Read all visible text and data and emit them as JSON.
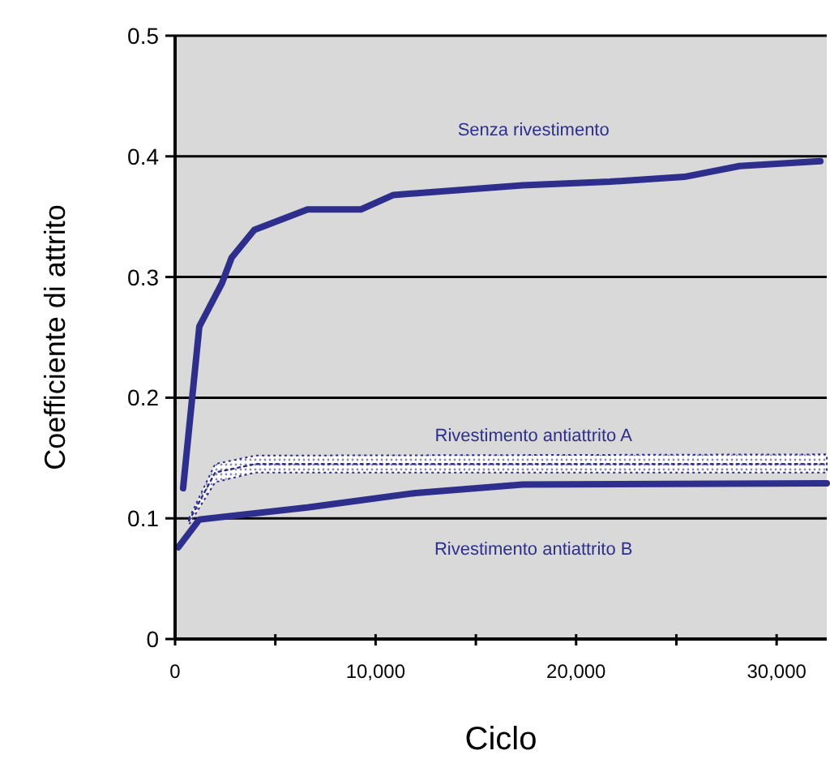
{
  "chart_data": {
    "type": "line",
    "xlabel": "Ciclo",
    "ylabel": "Coefficiente di attrito",
    "xlim": [
      0,
      32500
    ],
    "xticks": [
      0,
      {
        "value": 5000,
        "label": null
      },
      {
        "value": 10000,
        "label": "10,000"
      },
      {
        "value": 15000,
        "label": null
      },
      {
        "value": 20000,
        "label": "20,000"
      },
      {
        "value": 25000,
        "label": null
      },
      {
        "value": 30000,
        "label": "30,000"
      }
    ],
    "ylim": [
      0,
      0.5
    ],
    "yticks": [
      0,
      0.1,
      0.2,
      0.3,
      0.4,
      0.5
    ],
    "grid": "y",
    "marker": "none",
    "series": [
      {
        "name": "Senza rivestimento",
        "color": "#2e2e8c",
        "line_style": "solid",
        "x": [
          400,
          1210,
          2340,
          2820,
          3950,
          6610,
          9270,
          10890,
          17340,
          21690,
          25400,
          28150,
          32180
        ],
        "values": [
          0.125,
          0.259,
          0.295,
          0.316,
          0.339,
          0.356,
          0.356,
          0.368,
          0.376,
          0.379,
          0.383,
          0.392,
          0.396
        ]
      },
      {
        "name": "Rivestimento antiattrito A",
        "color": "#2e2e8c",
        "line_style": "dotted",
        "x": [
          700,
          2000,
          4000,
          32500
        ],
        "values": [
          0.098,
          0.138,
          0.145,
          0.145
        ],
        "lower": [
          0.095,
          0.13,
          0.138,
          0.138
        ],
        "upper": [
          0.1,
          0.145,
          0.152,
          0.153
        ]
      },
      {
        "name": "Rivestimento antiattrito B",
        "color": "#2e2e8c",
        "line_style": "solid",
        "x": [
          160,
          1210,
          6610,
          12000,
          17340,
          32500
        ],
        "values": [
          0.076,
          0.099,
          0.109,
          0.121,
          0.128,
          0.129
        ]
      }
    ]
  }
}
